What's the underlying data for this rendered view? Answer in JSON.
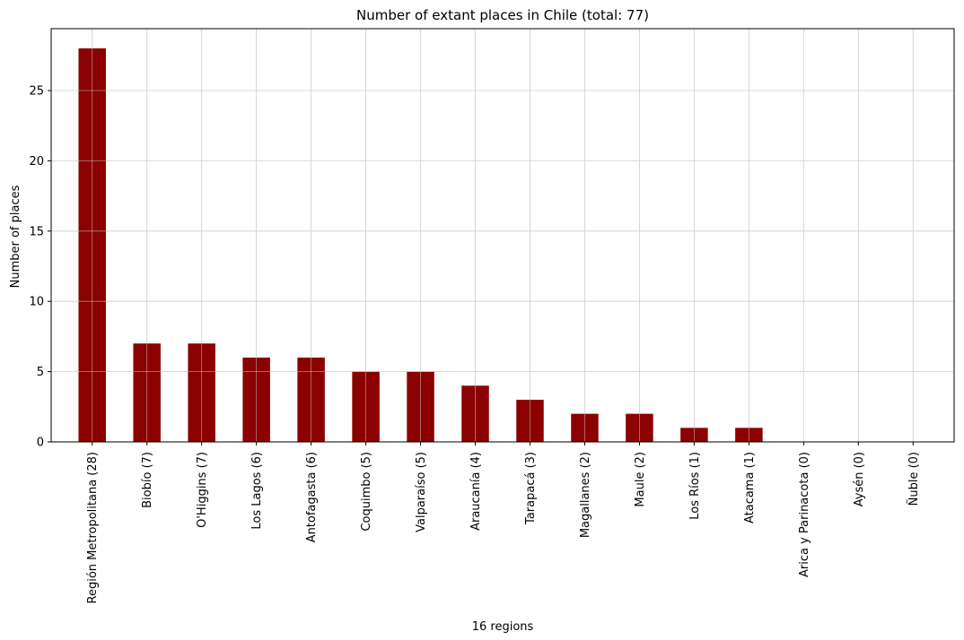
{
  "chart_data": {
    "type": "bar",
    "title": "Number of extant places in Chile (total: 77)",
    "xlabel": "16 regions",
    "ylabel": "Number of places",
    "categories": [
      "Región Metropolitana (28)",
      "Biobío (7)",
      "O'Higgins (7)",
      "Los Lagos (6)",
      "Antofagasta (6)",
      "Coquimbo (5)",
      "Valparaíso (5)",
      "Araucanía (4)",
      "Tarapacá (3)",
      "Magallanes (2)",
      "Maule (2)",
      "Los Ríos (1)",
      "Atacama (1)",
      "Arica y Parinacota (0)",
      "Aysén (0)",
      "Ñuble (0)"
    ],
    "values": [
      28,
      7,
      7,
      6,
      6,
      5,
      5,
      4,
      3,
      2,
      2,
      1,
      1,
      0,
      0,
      0
    ],
    "yticks": [
      0,
      5,
      10,
      15,
      20,
      25
    ],
    "ylim": [
      0,
      29.4
    ],
    "grid": true,
    "bar_color": "#8b0000",
    "grid_color": "#d3d3d3"
  }
}
